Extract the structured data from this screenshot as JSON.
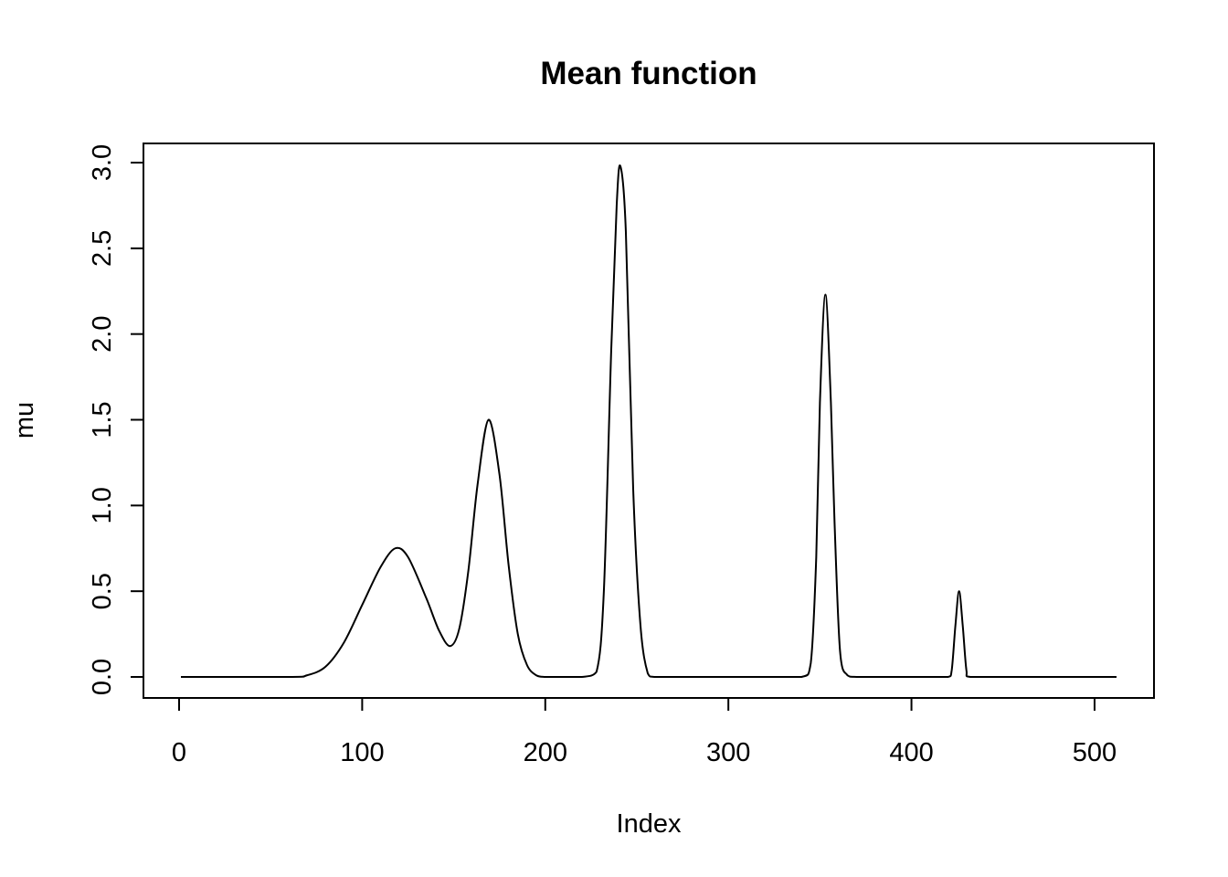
{
  "chart_data": {
    "type": "line",
    "title": "Mean function",
    "xlabel": "Index",
    "ylabel": "mu",
    "xlim": [
      1,
      512
    ],
    "ylim": [
      0,
      3
    ],
    "xticks": [
      0,
      100,
      200,
      300,
      400,
      500
    ],
    "yticks": [
      0.0,
      0.5,
      1.0,
      1.5,
      2.0,
      2.5,
      3.0
    ],
    "xtick_labels": [
      "0",
      "100",
      "200",
      "300",
      "400",
      "500"
    ],
    "ytick_labels": [
      "0.0",
      "0.5",
      "1.0",
      "1.5",
      "2.0",
      "2.5",
      "3.0"
    ],
    "grid": false,
    "line_color": "#000000",
    "series": [
      {
        "x": [
          1,
          60,
          70,
          80,
          90,
          100,
          110,
          118,
          125,
          135,
          142,
          148,
          153,
          158,
          163,
          169,
          175,
          180,
          185,
          190,
          195,
          200,
          210,
          220,
          228,
          232,
          236,
          239,
          241,
          244,
          248,
          252,
          256,
          260,
          280,
          300,
          320,
          340,
          345,
          348,
          350,
          353,
          356,
          358,
          361,
          365,
          370,
          390,
          410,
          420,
          422,
          424,
          426,
          428,
          430,
          432,
          450,
          480,
          512
        ],
        "y": [
          0,
          0,
          0.01,
          0.06,
          0.2,
          0.42,
          0.64,
          0.75,
          0.7,
          0.46,
          0.27,
          0.18,
          0.28,
          0.62,
          1.12,
          1.5,
          1.18,
          0.65,
          0.25,
          0.07,
          0.01,
          0,
          0,
          0,
          0.03,
          0.5,
          1.9,
          2.75,
          2.98,
          2.6,
          1.1,
          0.3,
          0.02,
          0,
          0,
          0,
          0,
          0,
          0.08,
          0.7,
          1.6,
          2.23,
          1.6,
          0.9,
          0.15,
          0.01,
          0,
          0,
          0,
          0,
          0.04,
          0.3,
          0.5,
          0.3,
          0.04,
          0,
          0,
          0,
          0
        ]
      }
    ]
  }
}
